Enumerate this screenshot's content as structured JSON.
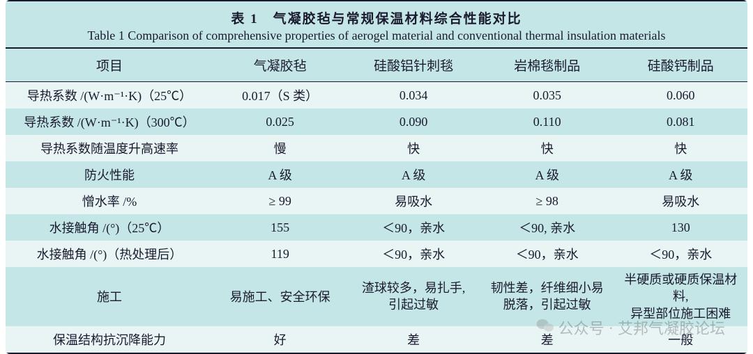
{
  "type": "table",
  "background_color": "#c5e6e7",
  "text_color": "#1a1a2e",
  "rule_color": "#1a1a2e",
  "row_stripe_colors": [
    "#c5e6e7",
    "#e9f5f5"
  ],
  "title_cn": "表 1　气凝胶毡与常规保温材料综合性能对比",
  "title_en": "Table 1  Comparison of comprehensive properties of aerogel material and conventional thermal insulation materials",
  "title_fontsize_cn": 19,
  "title_fontsize_en": 18,
  "header_fontsize": 19,
  "cell_fontsize": 18,
  "columns": [
    "项目",
    "气凝胶毡",
    "硅酸铝针刺毯",
    "岩棉毯制品",
    "硅酸钙制品"
  ],
  "col_widths_pct": [
    28,
    18,
    18,
    18,
    18
  ],
  "rows": [
    [
      "导热系数 /(W·m⁻¹·K)（25℃）",
      "0.017（S 类）",
      "0.034",
      "0.035",
      "0.060"
    ],
    [
      "导热系数 /(W·m⁻¹·K)（300℃）",
      "0.025",
      "0.090",
      "0.110",
      "0.081"
    ],
    [
      "导热系数随温度升高速率",
      "慢",
      "快",
      "快",
      "快"
    ],
    [
      "防火性能",
      "A 级",
      "A 级",
      "A 级",
      "A 级"
    ],
    [
      "憎水率 /%",
      "≥ 99",
      "易吸水",
      "≥ 98",
      "易吸水"
    ],
    [
      "水接触角 /(°)（25℃）",
      "155",
      "＜90，亲水",
      "＜90, 亲水",
      "130"
    ],
    [
      "水接触角 /(°)（热处理后）",
      "119",
      "＜90，亲水",
      "＜90，亲水",
      "＜90，亲水"
    ],
    [
      "施工",
      "易施工、安全环保",
      "渣球较多，易扎手,\n引起过敏",
      "韧性差，纤维细小易\n脱落，引起过敏",
      "半硬质或硬质保温材料,\n异型部位施工困难"
    ],
    [
      "保温结构抗沉降能力",
      "好",
      "差",
      "差",
      "一般"
    ]
  ],
  "watermark": {
    "label1": "公众号",
    "label2": "艾邦气凝胶论坛"
  }
}
